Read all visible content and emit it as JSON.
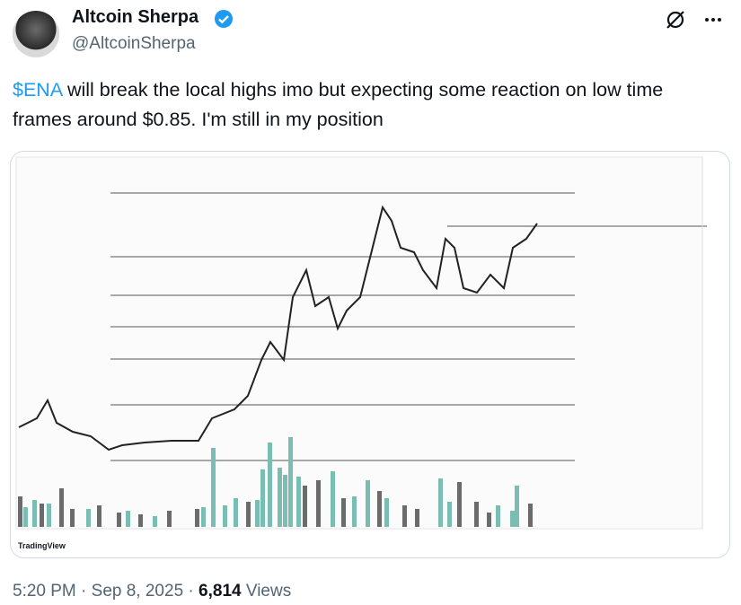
{
  "author": {
    "name": "Altcoin Sherpa",
    "handle": "@AltcoinSherpa"
  },
  "tweet": {
    "cashtag": "$ENA",
    "text": " will break the local highs imo but expecting some reaction on low time frames around $0.85. I'm still in my position"
  },
  "image": {
    "watermark": "TradingView"
  },
  "footer": {
    "time": "5:20 PM",
    "separator": "·",
    "date": "Sep 8, 2025",
    "views": "6,814",
    "views_label": "Views"
  }
}
